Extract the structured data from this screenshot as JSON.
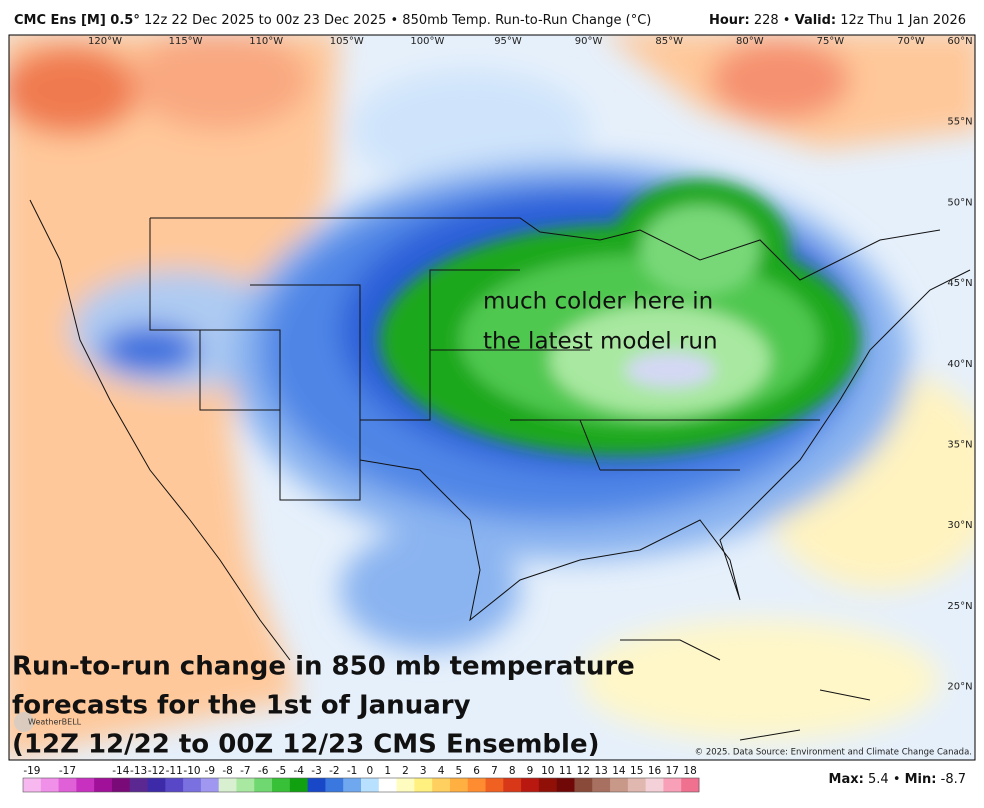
{
  "header": {
    "model": "CMC Ens [M] 0.5°",
    "description": "12z 22 Dec 2025 to 00z 23 Dec 2025 • 850mb Temp. Run-to-Run Change (°C)",
    "hour_label": "Hour:",
    "hour": 228,
    "separator": "•",
    "valid_label": "Valid:",
    "valid": "12z Thu 1 Jan 2026"
  },
  "longitude_labels": [
    "120°W",
    "115°W",
    "110°W",
    "105°W",
    "100°W",
    "95°W",
    "90°W",
    "85°W",
    "80°W",
    "75°W",
    "70°W"
  ],
  "latitude_labels": [
    "60°N",
    "55°N",
    "50°N",
    "45°N",
    "40°N",
    "35°N",
    "30°N",
    "25°N",
    "20°N"
  ],
  "annotation": [
    "much colder here in",
    "the latest model run"
  ],
  "caption": [
    "Run-to-run change in 850 mb temperature",
    "forecasts for the 1st of January",
    "(12Z 12/22 to 00Z 12/23 CMS Ensemble)"
  ],
  "logo": "WeatherBELL",
  "credit": "© 2025. Data Source: Environment and Climate Change Canada.",
  "colorbar": {
    "ticks": [
      -19,
      -17,
      -14,
      -13,
      -12,
      -11,
      -10,
      -9,
      -8,
      -7,
      -6,
      -5,
      -4,
      -3,
      -2,
      -1,
      0,
      1,
      2,
      3,
      4,
      5,
      6,
      7,
      8,
      9,
      10,
      11,
      12,
      13,
      14,
      15,
      16,
      17,
      18
    ],
    "colors": [
      "#f7b8ef",
      "#f090e8",
      "#e060d8",
      "#c830c0",
      "#a01098",
      "#7a0a78",
      "#5a2890",
      "#3c2aa8",
      "#5848c8",
      "#7a70e0",
      "#a098f0",
      "#d8f0d0",
      "#a8e8a0",
      "#70d870",
      "#38c038",
      "#10a010",
      "#1848c8",
      "#3a78e0",
      "#70a8f0",
      "#b8e0ff",
      "#ffffff",
      "#fffcc0",
      "#fff080",
      "#ffd060",
      "#ffb040",
      "#ff8c30",
      "#f06020",
      "#d83818",
      "#b81810",
      "#901008",
      "#700808",
      "#8a4a3a",
      "#a87060",
      "#c89888",
      "#e0b8b0",
      "#f4d0d8",
      "#f8a0b8",
      "#f07090"
    ]
  },
  "stats": {
    "max_label": "Max:",
    "max": 5.4,
    "separator": "•",
    "min_label": "Min:",
    "min": -8.7
  }
}
